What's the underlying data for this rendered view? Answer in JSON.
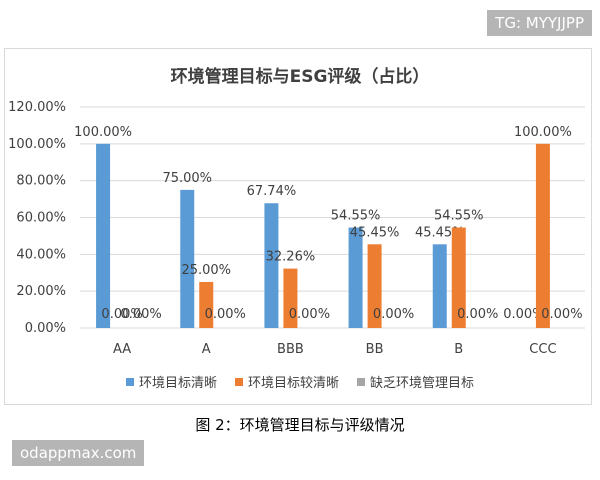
{
  "watermark_top": "TG: MYYJJPP",
  "watermark_bottom": "odappmax.com",
  "caption": "图 2：环境管理目标与评级情况",
  "chart_data": {
    "type": "bar",
    "title": "环境管理目标与ESG评级（占比）",
    "categories": [
      "AA",
      "A",
      "BBB",
      "BB",
      "B",
      "CCC"
    ],
    "ylim": [
      0,
      120
    ],
    "yticks": [
      "0.00%",
      "20.00%",
      "40.00%",
      "60.00%",
      "80.00%",
      "100.00%",
      "120.00%"
    ],
    "grid": true,
    "legend_position": "bottom",
    "series": [
      {
        "name": "环境目标清晰",
        "color": "#5b9bd5",
        "values": [
          100,
          75,
          67.74,
          54.55,
          45.45,
          0
        ],
        "labels": [
          "100.00%",
          "75.00%",
          "67.74%",
          "54.55%",
          "45.45%",
          "0.00%"
        ]
      },
      {
        "name": "环境目标较清晰",
        "color": "#ed7d31",
        "values": [
          0,
          25,
          32.26,
          45.45,
          54.55,
          100
        ],
        "labels": [
          "0.00%",
          "25.00%",
          "32.26%",
          "45.45%",
          "54.55%",
          "100.00%"
        ]
      },
      {
        "name": "缺乏环境管理目标",
        "color": "#a5a5a5",
        "values": [
          0,
          0,
          0,
          0,
          0,
          0
        ],
        "labels": [
          "0.00%",
          "0.00%",
          "0.00%",
          "0.00%",
          "0.00%",
          "0.00%"
        ]
      }
    ]
  }
}
